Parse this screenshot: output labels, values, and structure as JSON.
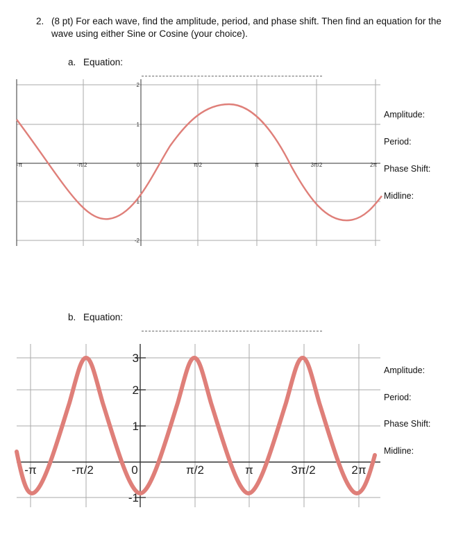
{
  "question": {
    "number": "2.",
    "text": "(8 pt) For each wave, find the amplitude, period, and phase shift. Then find an equation for the wave using either Sine or Cosine (your choice)."
  },
  "parts": [
    {
      "letter": "a.",
      "label": "Equation:",
      "side_labels": [
        "Amplitude:",
        "Period:",
        "Phase Shift:",
        "Midline:"
      ],
      "graph": {
        "x_ticks": [
          "-π",
          "-π/2",
          "0",
          "π/2",
          "π",
          "3π/2",
          "2π"
        ],
        "y_ticks": [
          "2",
          "1",
          "-1",
          "-2"
        ]
      }
    },
    {
      "letter": "b.",
      "label": "Equation:",
      "side_labels": [
        "Amplitude:",
        "Period:",
        "Phase Shift:",
        "Midline:"
      ],
      "graph": {
        "x_ticks": [
          "-π",
          "-π/2",
          "0",
          "π/2",
          "π",
          "3π/2",
          "2π"
        ],
        "y_ticks": [
          "3",
          "2",
          "1",
          "-1"
        ]
      }
    }
  ],
  "colors": {
    "curve": "#df7f79",
    "grid": "#aaaaaa",
    "axis": "#333333"
  }
}
